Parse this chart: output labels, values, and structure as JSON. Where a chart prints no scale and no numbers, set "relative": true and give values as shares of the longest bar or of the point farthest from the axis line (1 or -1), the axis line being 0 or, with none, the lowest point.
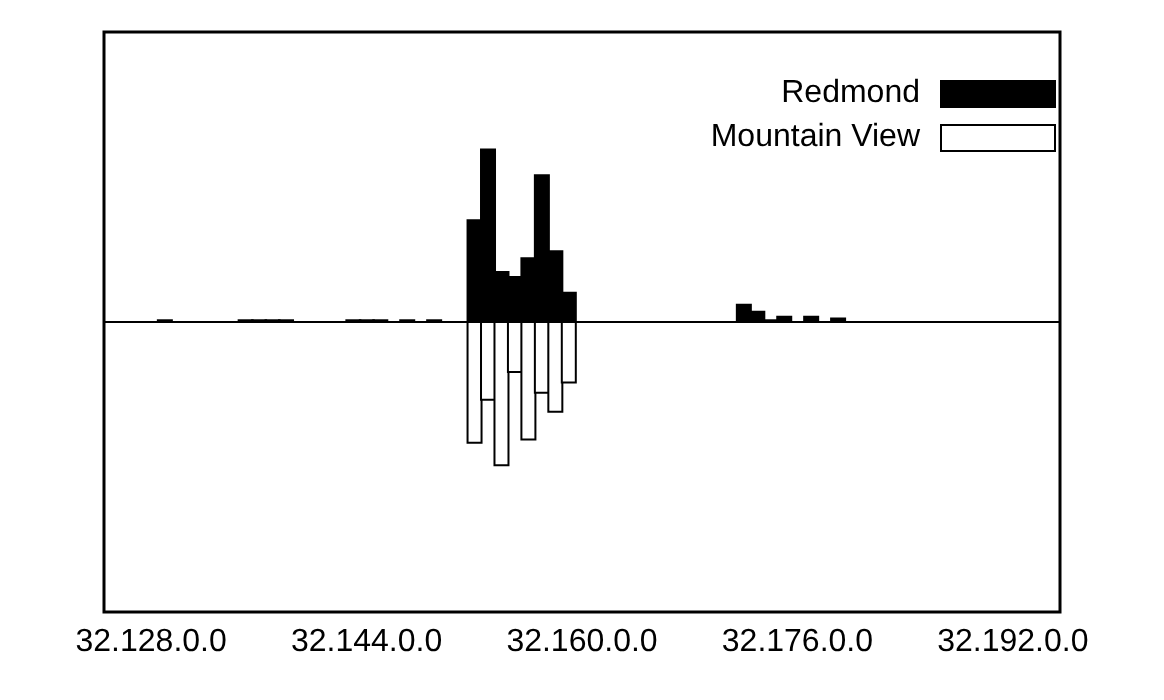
{
  "chart_data": {
    "type": "bar",
    "relative": true,
    "legend": "top right",
    "categories": [
      null,
      null,
      null,
      "32.128.0.0",
      null,
      null,
      null,
      null,
      null,
      null,
      null,
      null,
      null,
      null,
      null,
      null,
      null,
      null,
      null,
      "32.144.0.0",
      null,
      null,
      null,
      null,
      null,
      null,
      null,
      null,
      null,
      null,
      null,
      null,
      null,
      null,
      null,
      "32.160.0.0",
      null,
      null,
      null,
      null,
      null,
      null,
      null,
      null,
      null,
      null,
      null,
      null,
      null,
      null,
      null,
      "32.176.0.0",
      null,
      null,
      null,
      null,
      null,
      null,
      null,
      null,
      null,
      null,
      null,
      null,
      null,
      null,
      null,
      "32.192.0.0",
      null,
      null,
      null
    ],
    "series": [
      {
        "name": "Redmond",
        "color": "#000000",
        "values": [
          null,
          null,
          null,
          null,
          0.01,
          null,
          null,
          null,
          null,
          null,
          0.01,
          0.01,
          0.01,
          0.01,
          null,
          null,
          null,
          null,
          0.01,
          0.01,
          0.01,
          null,
          0.01,
          null,
          0.01,
          null,
          null,
          0.59,
          1,
          0.29,
          0.26,
          0.37,
          0.85,
          0.41,
          0.17,
          null,
          null,
          null,
          null,
          null,
          null,
          null,
          null,
          null,
          null,
          null,
          null,
          0.1,
          0.06,
          0.01,
          0.03,
          null,
          0.03,
          null,
          0.02,
          null,
          null,
          null,
          null,
          null,
          null,
          null,
          null,
          null,
          null,
          null,
          null,
          null,
          null,
          null,
          null
        ]
      },
      {
        "name": "Mountain View",
        "color": "#ffffff",
        "values": [
          null,
          null,
          null,
          null,
          null,
          null,
          null,
          null,
          null,
          null,
          null,
          null,
          null,
          null,
          null,
          null,
          null,
          null,
          null,
          null,
          null,
          null,
          null,
          null,
          null,
          null,
          null,
          -0.7,
          -0.45,
          -0.83,
          -0.29,
          -0.68,
          -0.41,
          -0.52,
          -0.35,
          null,
          null,
          null,
          null,
          null,
          null,
          null,
          null,
          null,
          null,
          null,
          null,
          null,
          null,
          null,
          null,
          null,
          null,
          null,
          null,
          null,
          null,
          null,
          null,
          null,
          null,
          null,
          null,
          null,
          null,
          null,
          null,
          null,
          null,
          null,
          null
        ]
      }
    ]
  }
}
